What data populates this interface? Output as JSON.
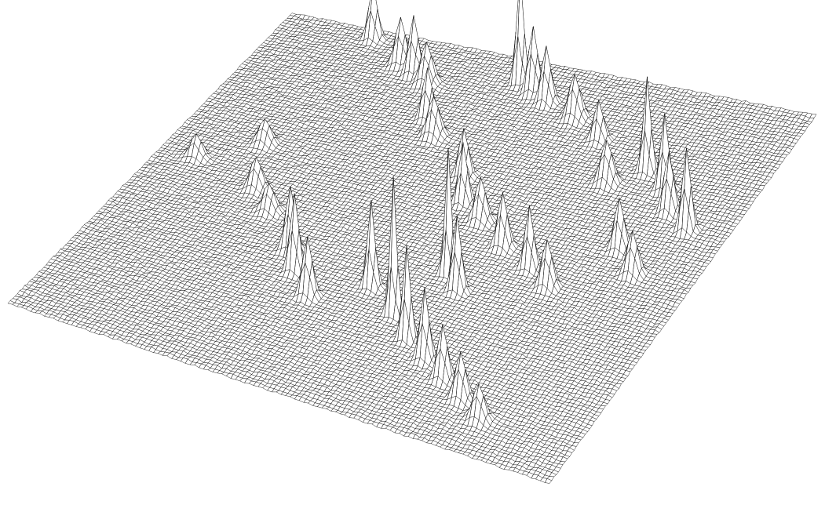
{
  "chart_data": {
    "type": "surface",
    "title": "",
    "xlabel": "",
    "ylabel": "",
    "zlabel": "",
    "axes_visible": false,
    "grid_visible": true,
    "legend": "none",
    "surface": {
      "rows": 120,
      "cols": 120,
      "baseline": 0,
      "peaks": [
        {
          "r": 3,
          "c": 20,
          "h": 70,
          "w": 0.9
        },
        {
          "r": 10,
          "c": 30,
          "h": 60,
          "w": 1.1
        },
        {
          "r": 12,
          "c": 34,
          "h": 75,
          "w": 1.0
        },
        {
          "r": 14,
          "c": 38,
          "h": 52,
          "w": 1.2
        },
        {
          "r": 8,
          "c": 56,
          "h": 140,
          "w": 0.8
        },
        {
          "r": 10,
          "c": 60,
          "h": 85,
          "w": 1.0
        },
        {
          "r": 12,
          "c": 64,
          "h": 70,
          "w": 1.0
        },
        {
          "r": 15,
          "c": 72,
          "h": 55,
          "w": 1.2
        },
        {
          "r": 20,
          "c": 80,
          "h": 50,
          "w": 1.0
        },
        {
          "r": 26,
          "c": 94,
          "h": 120,
          "w": 0.8
        },
        {
          "r": 30,
          "c": 100,
          "h": 95,
          "w": 0.9
        },
        {
          "r": 36,
          "c": 104,
          "h": 75,
          "w": 1.0
        },
        {
          "r": 40,
          "c": 110,
          "h": 105,
          "w": 0.9
        },
        {
          "r": 32,
          "c": 88,
          "h": 55,
          "w": 1.2
        },
        {
          "r": 25,
          "c": 44,
          "h": 65,
          "w": 1.0
        },
        {
          "r": 30,
          "c": 48,
          "h": 50,
          "w": 1.2
        },
        {
          "r": 40,
          "c": 60,
          "h": 60,
          "w": 1.0
        },
        {
          "r": 48,
          "c": 64,
          "h": 75,
          "w": 0.9
        },
        {
          "r": 52,
          "c": 70,
          "h": 55,
          "w": 1.1
        },
        {
          "r": 58,
          "c": 78,
          "h": 70,
          "w": 1.0
        },
        {
          "r": 62,
          "c": 86,
          "h": 80,
          "w": 0.9
        },
        {
          "r": 66,
          "c": 92,
          "h": 60,
          "w": 1.1
        },
        {
          "r": 70,
          "c": 72,
          "h": 160,
          "w": 0.7
        },
        {
          "r": 74,
          "c": 76,
          "h": 95,
          "w": 0.9
        },
        {
          "r": 80,
          "c": 60,
          "h": 110,
          "w": 0.8
        },
        {
          "r": 86,
          "c": 68,
          "h": 175,
          "w": 0.7
        },
        {
          "r": 92,
          "c": 74,
          "h": 120,
          "w": 0.8
        },
        {
          "r": 96,
          "c": 80,
          "h": 90,
          "w": 0.9
        },
        {
          "r": 100,
          "c": 86,
          "h": 70,
          "w": 1.0
        },
        {
          "r": 76,
          "c": 40,
          "h": 80,
          "w": 1.0
        },
        {
          "r": 82,
          "c": 44,
          "h": 100,
          "w": 0.9
        },
        {
          "r": 88,
          "c": 50,
          "h": 75,
          "w": 1.0
        },
        {
          "r": 60,
          "c": 24,
          "h": 40,
          "w": 1.2
        },
        {
          "r": 66,
          "c": 30,
          "h": 35,
          "w": 1.2
        },
        {
          "r": 45,
          "c": 18,
          "h": 30,
          "w": 1.3
        },
        {
          "r": 55,
          "c": 8,
          "h": 28,
          "w": 1.2
        },
        {
          "r": 104,
          "c": 92,
          "h": 60,
          "w": 1.1
        },
        {
          "r": 108,
          "c": 98,
          "h": 45,
          "w": 1.2
        },
        {
          "r": 50,
          "c": 100,
          "h": 65,
          "w": 1.0
        },
        {
          "r": 56,
          "c": 106,
          "h": 55,
          "w": 1.1
        }
      ]
    }
  }
}
